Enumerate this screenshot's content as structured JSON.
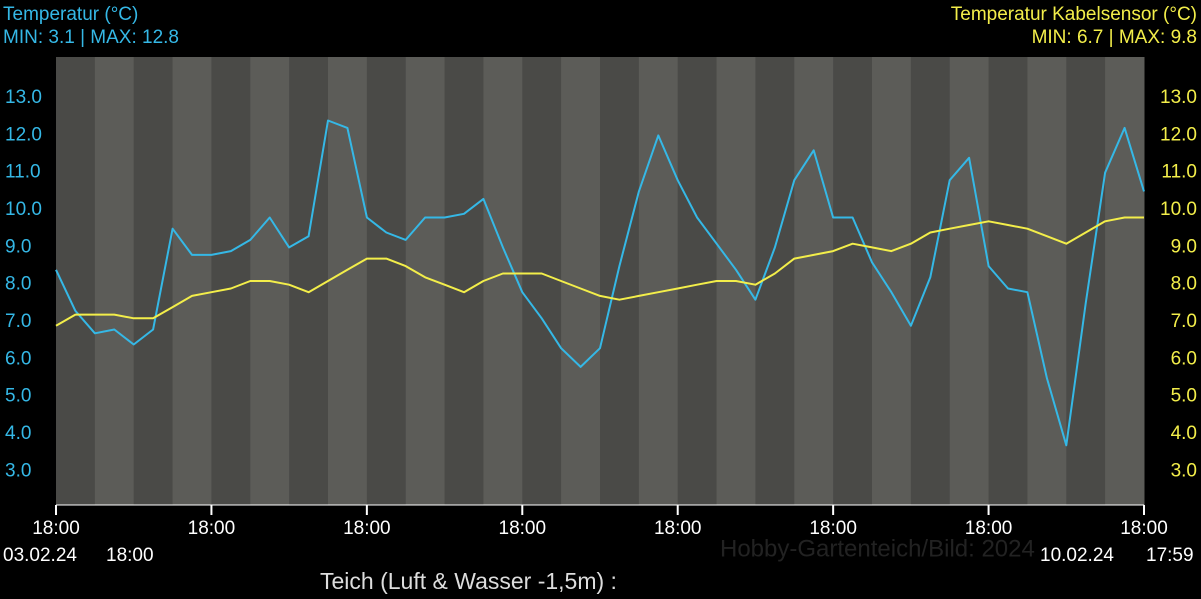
{
  "chart_data": {
    "type": "line",
    "title": "Teich (Luft & Wasser -1,5m) :",
    "watermark": "Hobby-Gartenteich/Bild: 2024",
    "start_date": "03.02.24",
    "start_time": "18:00",
    "end_date": "10.02.24",
    "end_time": "17:59",
    "x": [
      0,
      3,
      6,
      9,
      12,
      15,
      18,
      21,
      24,
      27,
      30,
      33,
      36,
      39,
      42,
      45,
      48,
      51,
      54,
      57,
      60,
      63,
      66,
      69,
      72,
      75,
      78,
      81,
      84,
      87,
      90,
      93,
      96,
      99,
      102,
      105,
      108,
      111,
      114,
      117,
      120,
      123,
      126,
      129,
      132,
      135,
      138,
      141,
      144,
      147,
      150,
      153,
      156,
      159,
      162,
      165,
      168
    ],
    "xlim": [
      0,
      168
    ],
    "xticks": [
      {
        "value": 0,
        "label": "18:00"
      },
      {
        "value": 24,
        "label": "18:00"
      },
      {
        "value": 48,
        "label": "18:00"
      },
      {
        "value": 72,
        "label": "18:00"
      },
      {
        "value": 96,
        "label": "18:00"
      },
      {
        "value": 120,
        "label": "18:00"
      },
      {
        "value": 144,
        "label": "18:00"
      },
      {
        "value": 168,
        "label": "18:00"
      }
    ],
    "ylim": [
      2.1,
      14.1
    ],
    "yticks": [
      {
        "value": 3,
        "label": "3.0"
      },
      {
        "value": 4,
        "label": "4.0"
      },
      {
        "value": 5,
        "label": "5.0"
      },
      {
        "value": 6,
        "label": "6.0"
      },
      {
        "value": 7,
        "label": "7.0"
      },
      {
        "value": 8,
        "label": "8.0"
      },
      {
        "value": 9,
        "label": "9.0"
      },
      {
        "value": 10,
        "label": "10.0"
      },
      {
        "value": 11,
        "label": "11.0"
      },
      {
        "value": 12,
        "label": "12.0"
      },
      {
        "value": 13,
        "label": "13.0"
      }
    ],
    "y2lim": [
      2.1,
      14.1
    ],
    "y2ticks": [
      {
        "value": 3,
        "label": "3.0"
      },
      {
        "value": 4,
        "label": "4.0"
      },
      {
        "value": 5,
        "label": "5.0"
      },
      {
        "value": 6,
        "label": "6.0"
      },
      {
        "value": 7,
        "label": "7.0"
      },
      {
        "value": 8,
        "label": "8.0"
      },
      {
        "value": 9,
        "label": "9.0"
      },
      {
        "value": 10,
        "label": "10.0"
      },
      {
        "value": 11,
        "label": "11.0"
      },
      {
        "value": 12,
        "label": "12.0"
      },
      {
        "value": 13,
        "label": "13.0"
      }
    ],
    "series": [
      {
        "name": "Temperatur (°C)",
        "stats": "MIN: 3.1 | MAX: 12.8",
        "color": "#35b8e6",
        "axis": "y",
        "values": [
          8.4,
          7.3,
          6.7,
          6.8,
          6.4,
          6.8,
          9.5,
          8.8,
          8.8,
          8.9,
          9.2,
          9.8,
          9.0,
          9.3,
          12.4,
          12.2,
          9.8,
          9.4,
          9.2,
          9.8,
          9.8,
          9.9,
          10.3,
          9.0,
          7.8,
          7.1,
          6.3,
          5.8,
          6.3,
          8.5,
          10.5,
          12.0,
          10.8,
          9.8,
          9.1,
          8.4,
          7.6,
          9.0,
          10.8,
          11.6,
          9.8,
          9.8,
          8.6,
          7.8,
          6.9,
          8.2,
          10.8,
          11.4,
          8.5,
          7.9,
          7.8,
          5.5,
          3.7,
          7.5,
          11.0,
          12.2,
          10.5
        ]
      },
      {
        "name": "Temperatur Kabelsensor (°C)",
        "stats": "MIN: 6.7 | MAX: 9.8",
        "color": "#f3ee4a",
        "axis": "y2",
        "values": [
          6.9,
          7.2,
          7.2,
          7.2,
          7.1,
          7.1,
          7.4,
          7.7,
          7.8,
          7.9,
          8.1,
          8.1,
          8.0,
          7.8,
          8.1,
          8.4,
          8.7,
          8.7,
          8.5,
          8.2,
          8.0,
          7.8,
          8.1,
          8.3,
          8.3,
          8.3,
          8.1,
          7.9,
          7.7,
          7.6,
          7.7,
          7.8,
          7.9,
          8.0,
          8.1,
          8.1,
          8.0,
          8.3,
          8.7,
          8.8,
          8.9,
          9.1,
          9.0,
          8.9,
          9.1,
          9.4,
          9.5,
          9.6,
          9.7,
          9.6,
          9.5,
          9.3,
          9.1,
          9.4,
          9.7,
          9.8,
          9.8
        ]
      }
    ]
  }
}
